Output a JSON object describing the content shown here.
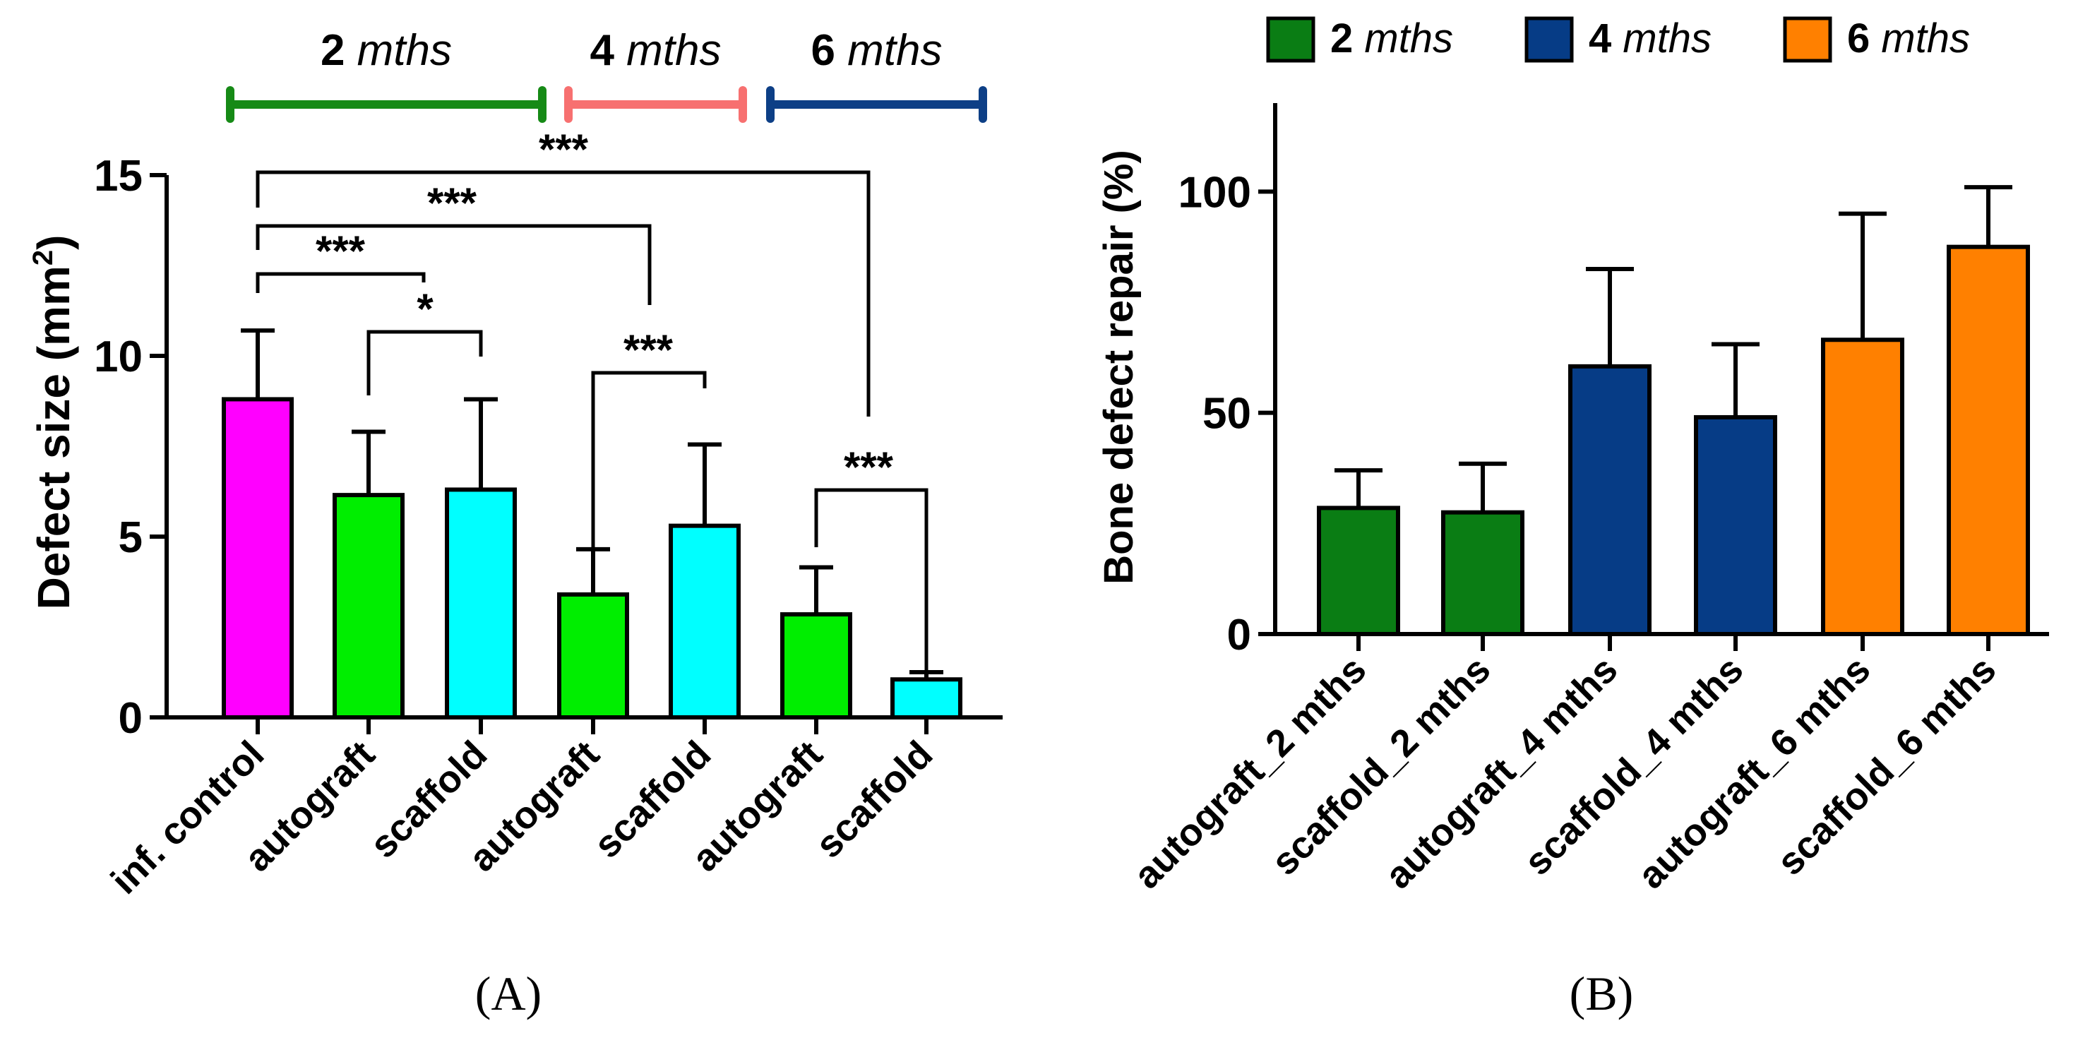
{
  "chart_data": [
    {
      "type": "bar",
      "panel_label": "(A)",
      "ylabel": "Defect size (mm²)",
      "ylabel_main": "Defect size (mm",
      "ylabel_sup": "2",
      "ylabel_close": ")",
      "ylim": [
        0,
        15
      ],
      "yticks": [
        "0",
        "5",
        "10",
        "15"
      ],
      "categories": [
        "inf. control",
        "autograft",
        "scaffold",
        "autograft",
        "scaffold",
        "autograft",
        "scaffold"
      ],
      "values": [
        8.8,
        6.15,
        6.3,
        3.4,
        5.3,
        2.85,
        1.05
      ],
      "errors": [
        1.9,
        1.75,
        2.5,
        1.25,
        2.25,
        1.3,
        0.2
      ],
      "colors": [
        "#ff00ff",
        "#00ee00",
        "#00ffff",
        "#00ee00",
        "#00ffff",
        "#00ee00",
        "#00ffff"
      ],
      "groups": [
        {
          "num": "2",
          "unit": "mths",
          "color": "#168a16"
        },
        {
          "num": "4",
          "unit": "mths",
          "color": "#f77070"
        },
        {
          "num": "6",
          "unit": "mths",
          "color": "#0d3f86"
        }
      ],
      "significance": [
        {
          "from": 0,
          "to": 6,
          "label": "***"
        },
        {
          "from": 0,
          "to": 4,
          "label": "***"
        },
        {
          "from": 0,
          "to": 2,
          "label": "***"
        },
        {
          "from": 1,
          "to": 2,
          "label": "*"
        },
        {
          "from": 3,
          "to": 4,
          "label": "***"
        },
        {
          "from": 5,
          "to": 6,
          "label": "***"
        }
      ]
    },
    {
      "type": "bar",
      "panel_label": "(B)",
      "ylabel": "Bone defect repair (%)",
      "ylim": [
        0,
        120
      ],
      "yticks": [
        "0",
        "50",
        "100"
      ],
      "categories": [
        "autograft_2 mths",
        "scaffold_2 mths",
        "autograft_4 mths",
        "scaffold_4 mths",
        "autograft_6 mths",
        "scaffold_6 mths"
      ],
      "values": [
        28.5,
        27.5,
        60.5,
        49,
        66.5,
        87.5
      ],
      "errors": [
        8.5,
        11,
        22,
        16.5,
        28.5,
        13.5
      ],
      "colors": [
        "#0a7d14",
        "#0a7d14",
        "#063c86",
        "#063c86",
        "#ff8000",
        "#ff8000"
      ],
      "legend": [
        {
          "num": "2",
          "unit": "mths",
          "color": "#0a7d14"
        },
        {
          "num": "4",
          "unit": "mths",
          "color": "#063c86"
        },
        {
          "num": "6",
          "unit": "mths",
          "color": "#ff8000"
        }
      ],
      "legend_position": "top"
    }
  ]
}
